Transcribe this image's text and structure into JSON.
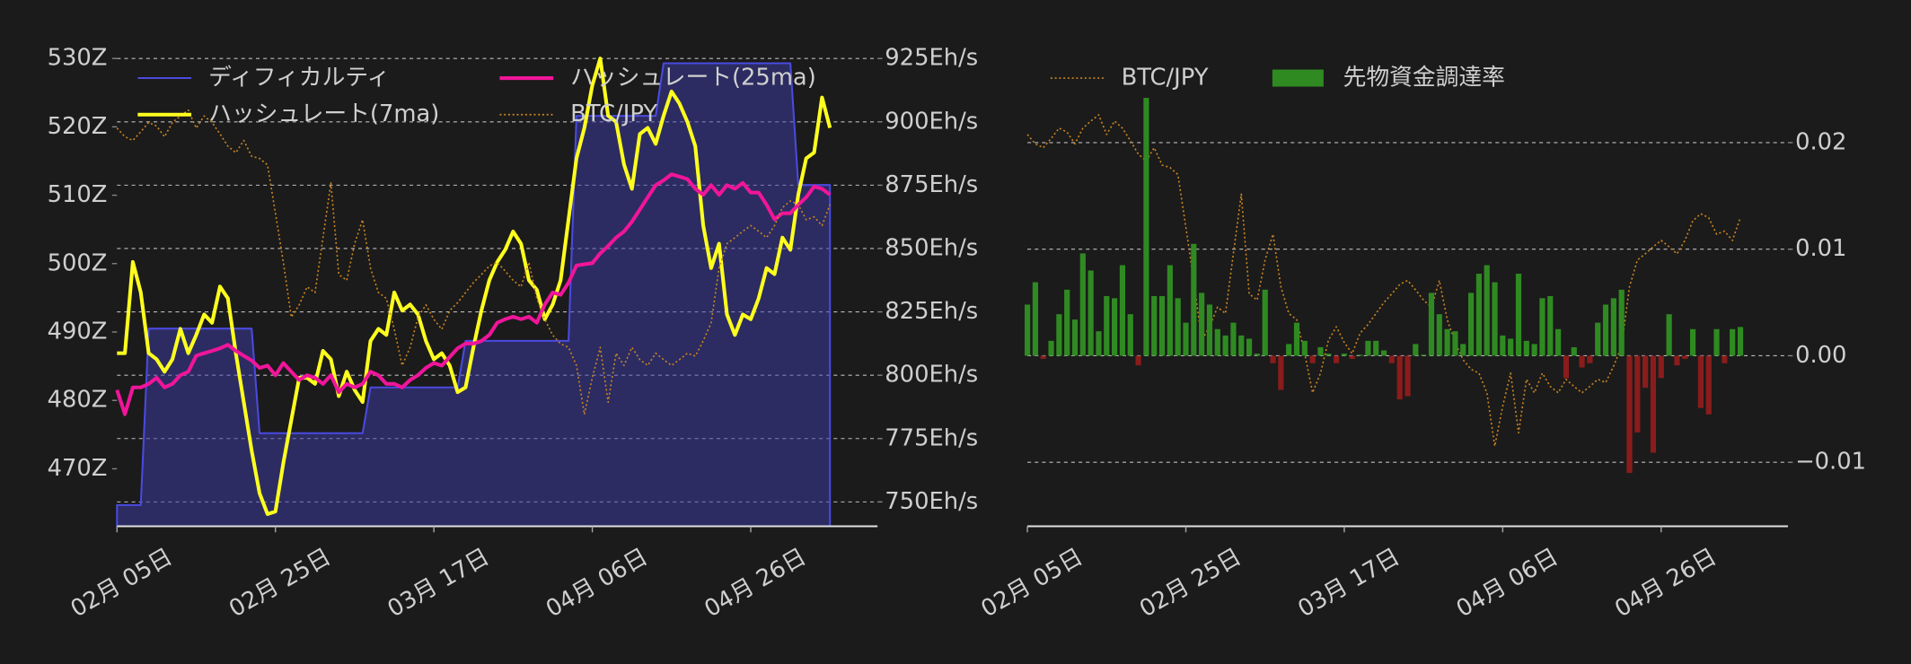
{
  "chart_data": [
    {
      "type": "line",
      "x": [
        "02-05",
        "02-06",
        "02-07",
        "02-08",
        "02-09",
        "02-10",
        "02-11",
        "02-12",
        "02-13",
        "02-14",
        "02-15",
        "02-16",
        "02-17",
        "02-18",
        "02-19",
        "02-20",
        "02-21",
        "02-22",
        "02-23",
        "02-24",
        "02-25",
        "02-26",
        "02-27",
        "02-28",
        "03-01",
        "03-02",
        "03-03",
        "03-04",
        "03-05",
        "03-06",
        "03-07",
        "03-08",
        "03-09",
        "03-10",
        "03-11",
        "03-12",
        "03-13",
        "03-14",
        "03-15",
        "03-16",
        "03-17",
        "03-18",
        "03-19",
        "03-20",
        "03-21",
        "03-22",
        "03-23",
        "03-24",
        "03-25",
        "03-26",
        "03-27",
        "03-28",
        "03-29",
        "03-30",
        "03-31",
        "04-01",
        "04-02",
        "04-03",
        "04-04",
        "04-05",
        "04-06",
        "04-07",
        "04-08",
        "04-09",
        "04-10",
        "04-11",
        "04-12",
        "04-13",
        "04-14",
        "04-15",
        "04-16",
        "04-17",
        "04-18",
        "04-19",
        "04-20",
        "04-21",
        "04-22",
        "04-23",
        "04-24",
        "04-25",
        "04-26",
        "04-27",
        "04-28",
        "04-29",
        "04-30",
        "05-01",
        "05-02",
        "05-03",
        "05-04",
        "05-05",
        "05-06"
      ],
      "xlim": [
        "02-05",
        "05-12"
      ],
      "xticks": [
        {
          "value": "02-05",
          "label": "02月 05日"
        },
        {
          "value": "02-25",
          "label": "02月 25日"
        },
        {
          "value": "03-17",
          "label": "03月 17日"
        },
        {
          "value": "04-06",
          "label": "04月 06日"
        },
        {
          "value": "04-26",
          "label": "04月 26日"
        }
      ],
      "ylim": [
        461.6,
        531.4
      ],
      "yticks": [
        {
          "value": 470,
          "label": "470Z"
        },
        {
          "value": 480,
          "label": "480Z"
        },
        {
          "value": 490,
          "label": "490Z"
        },
        {
          "value": 500,
          "label": "500Z"
        },
        {
          "value": 510,
          "label": "510Z"
        },
        {
          "value": 520,
          "label": "520Z"
        },
        {
          "value": 530,
          "label": "530Z"
        }
      ],
      "y2lim": [
        740.4,
        928.8
      ],
      "y2ticks": [
        {
          "value": 750,
          "label": "750Eh/s"
        },
        {
          "value": 775,
          "label": "775Eh/s"
        },
        {
          "value": 800,
          "label": "800Eh/s"
        },
        {
          "value": 825,
          "label": "825Eh/s"
        },
        {
          "value": 850,
          "label": "850Eh/s"
        },
        {
          "value": 875,
          "label": "875Eh/s"
        },
        {
          "value": 900,
          "label": "900Eh/s"
        },
        {
          "value": 925,
          "label": "925Eh/s"
        }
      ],
      "y3lim": [
        9.78,
        16.4
      ],
      "grid": "y2",
      "legend": "upper left",
      "legend_columns": 2,
      "series": [
        {
          "name": "ディフィカルティ",
          "type": "line",
          "axis": "y",
          "color": "#4a4ae0",
          "fill": "rgba(62,62,170,0.5)",
          "values": [
            464.7,
            464.7,
            464.7,
            464.7,
            490.5,
            490.5,
            490.5,
            490.5,
            490.5,
            490.5,
            490.5,
            490.5,
            490.5,
            490.5,
            490.5,
            490.5,
            490.5,
            490.5,
            475.2,
            475.2,
            475.2,
            475.2,
            475.2,
            475.2,
            475.2,
            475.2,
            475.2,
            475.2,
            475.2,
            475.2,
            475.2,
            475.2,
            481.9,
            481.9,
            481.9,
            481.9,
            481.9,
            481.9,
            481.9,
            481.9,
            481.9,
            481.9,
            481.9,
            481.9,
            488.7,
            488.7,
            488.7,
            488.7,
            488.7,
            488.7,
            488.7,
            488.7,
            488.7,
            488.7,
            488.7,
            488.7,
            488.7,
            488.7,
            521.6,
            521.6,
            521.6,
            521.6,
            521.6,
            521.6,
            521.6,
            521.6,
            521.6,
            521.6,
            521.6,
            529.3,
            529.3,
            529.3,
            529.3,
            529.3,
            529.3,
            529.3,
            529.3,
            529.3,
            529.3,
            529.3,
            529.3,
            529.3,
            529.3,
            529.3,
            529.3,
            529.3,
            511.5,
            511.5,
            511.5,
            511.5,
            511.5
          ]
        },
        {
          "name": "ハッシュレート(7ma)",
          "type": "line",
          "axis": "y2",
          "color": "#ffff1f",
          "width": 3,
          "values": [
            808.7,
            808.7,
            844.7,
            832.7,
            808.7,
            806.3,
            801.4,
            806.3,
            818.3,
            808.7,
            815.9,
            824,
            820.7,
            835,
            830.3,
            808.7,
            789.4,
            770.2,
            753.4,
            745.2,
            746.2,
            765.4,
            782.2,
            799,
            799,
            796.6,
            809.6,
            806.3,
            791.8,
            801.4,
            794.2,
            789.4,
            813.5,
            818.3,
            815.9,
            832.7,
            825.5,
            827.9,
            824,
            813.5,
            806.3,
            808.7,
            803.8,
            793.3,
            795.2,
            811.1,
            825.5,
            837.5,
            844.7,
            849.5,
            856.7,
            851.9,
            837.5,
            833.7,
            822.1,
            827.9,
            837.5,
            861.5,
            885.6,
            897.6,
            914.4,
            925,
            902.4,
            900,
            883.2,
            873.6,
            895.2,
            897.6,
            891.3,
            902.4,
            912,
            907.2,
            900,
            890.4,
            859.1,
            842.3,
            851.9,
            824,
            815.9,
            824,
            822.1,
            830.3,
            842.3,
            839.9,
            854.3,
            849.5,
            871.2,
            885.6,
            887.9,
            909.6,
            897.6
          ]
        },
        {
          "name": "ハッシュレート(25ma)",
          "type": "line",
          "axis": "y2",
          "color": "#f0159a",
          "width": 3,
          "values": [
            794.2,
            784.6,
            795.2,
            795.2,
            796.6,
            799,
            795.2,
            796.6,
            800,
            801.4,
            807.7,
            808.7,
            809.6,
            810.6,
            812,
            809.6,
            807.7,
            805.8,
            802.9,
            803.8,
            800,
            804.8,
            801.4,
            798.1,
            800,
            799,
            796.6,
            800,
            793.3,
            796.6,
            795.2,
            796.6,
            801.4,
            800,
            796.6,
            796.6,
            795.2,
            798.1,
            800,
            802.9,
            804.8,
            803.8,
            807.2,
            810.6,
            812.5,
            812.5,
            813.5,
            815.9,
            820.7,
            822.1,
            823.1,
            822.1,
            823.1,
            820.7,
            827.9,
            832.7,
            831.7,
            836.5,
            843.3,
            843.8,
            844.2,
            848.1,
            851,
            854.3,
            856.7,
            860.6,
            865.4,
            870.2,
            875,
            876.9,
            879.3,
            878.4,
            877.4,
            873.6,
            871.2,
            875,
            871.2,
            875,
            873.6,
            875.9,
            872.1,
            872.1,
            867.3,
            861.5,
            863.9,
            863.9,
            867.3,
            870.2,
            874.5,
            873.6,
            871.2
          ]
        },
        {
          "name": "BTC/JPY",
          "type": "line",
          "axis": "y3",
          "color": "#c98420",
          "width": 1.2,
          "linestyle": "dotted",
          "values": [
            15.3,
            15.18,
            15.13,
            15.25,
            15.38,
            15.33,
            15.18,
            15.38,
            15.47,
            15.55,
            15.3,
            15.47,
            15.38,
            15.22,
            15.05,
            14.96,
            15.13,
            14.91,
            14.88,
            14.79,
            14.12,
            13.44,
            12.68,
            12.85,
            13.1,
            13.02,
            13.78,
            14.54,
            13.27,
            13.19,
            13.7,
            14.03,
            13.36,
            13.02,
            12.94,
            12.51,
            12.01,
            12.26,
            12.68,
            12.85,
            12.65,
            12.51,
            12.77,
            12.88,
            13.02,
            13.16,
            13.27,
            13.39,
            13.44,
            13.32,
            13.19,
            13.1,
            13.44,
            12.94,
            12.65,
            12.43,
            12.31,
            12.26,
            12.01,
            11.33,
            11.84,
            12.26,
            11.5,
            12.18,
            12.01,
            12.26,
            12.09,
            12.01,
            12.18,
            12.09,
            12.01,
            12.09,
            12.18,
            12.14,
            12.35,
            12.6,
            13.36,
            13.7,
            13.78,
            13.87,
            13.95,
            13.87,
            13.78,
            13.95,
            14.2,
            14.29,
            14.24,
            14.03,
            14.07,
            13.95,
            14.24
          ]
        }
      ]
    },
    {
      "type": "bar",
      "x": [
        "02-05",
        "02-06",
        "02-07",
        "02-08",
        "02-09",
        "02-10",
        "02-11",
        "02-12",
        "02-13",
        "02-14",
        "02-15",
        "02-16",
        "02-17",
        "02-18",
        "02-19",
        "02-20",
        "02-21",
        "02-22",
        "02-23",
        "02-24",
        "02-25",
        "02-26",
        "02-27",
        "02-28",
        "03-01",
        "03-02",
        "03-03",
        "03-04",
        "03-05",
        "03-06",
        "03-07",
        "03-08",
        "03-09",
        "03-10",
        "03-11",
        "03-12",
        "03-13",
        "03-14",
        "03-15",
        "03-16",
        "03-17",
        "03-18",
        "03-19",
        "03-20",
        "03-21",
        "03-22",
        "03-23",
        "03-24",
        "03-25",
        "03-26",
        "03-27",
        "03-28",
        "03-29",
        "03-30",
        "03-31",
        "04-01",
        "04-02",
        "04-03",
        "04-04",
        "04-05",
        "04-06",
        "04-07",
        "04-08",
        "04-09",
        "04-10",
        "04-11",
        "04-12",
        "04-13",
        "04-14",
        "04-15",
        "04-16",
        "04-17",
        "04-18",
        "04-19",
        "04-20",
        "04-21",
        "04-22",
        "04-23",
        "04-24",
        "04-25",
        "04-26",
        "04-27",
        "04-28",
        "04-29",
        "04-30",
        "05-01",
        "05-02",
        "05-03",
        "05-04",
        "05-05",
        "05-06"
      ],
      "xlim": [
        "02-05",
        "05-12"
      ],
      "xticks": [
        {
          "value": "02-05",
          "label": "02月 05日"
        },
        {
          "value": "02-25",
          "label": "02月 25日"
        },
        {
          "value": "03-17",
          "label": "03月 17日"
        },
        {
          "value": "04-06",
          "label": "04月 06日"
        },
        {
          "value": "04-26",
          "label": "04月 26日"
        }
      ],
      "ylim": [
        -0.016,
        0.0288
      ],
      "yticks": [
        {
          "value": -0.01,
          "label": "−0.01"
        },
        {
          "value": 0,
          "label": "0.00"
        },
        0.01,
        0.02
      ],
      "y_axis_side": "right",
      "y2lim": [
        10.31,
        16.39
      ],
      "grid": "y",
      "legend": "upper left",
      "legend_columns": 2,
      "series": [
        {
          "name": "BTC/JPY",
          "type": "line",
          "axis": "y2",
          "color": "#c98420",
          "width": 1.2,
          "linestyle": "dotted",
          "values": [
            15.3,
            15.18,
            15.13,
            15.25,
            15.38,
            15.33,
            15.18,
            15.38,
            15.47,
            15.55,
            15.3,
            15.47,
            15.38,
            15.22,
            15.05,
            14.96,
            15.13,
            14.91,
            14.88,
            14.79,
            14.12,
            13.44,
            12.68,
            12.85,
            13.1,
            13.02,
            13.78,
            14.54,
            13.27,
            13.19,
            13.7,
            14.03,
            13.36,
            13.02,
            12.94,
            12.51,
            12.01,
            12.26,
            12.68,
            12.85,
            12.65,
            12.51,
            12.77,
            12.88,
            13.02,
            13.16,
            13.27,
            13.39,
            13.44,
            13.32,
            13.19,
            13.1,
            13.44,
            12.94,
            12.65,
            12.43,
            12.31,
            12.26,
            12.01,
            11.33,
            11.84,
            12.26,
            11.5,
            12.18,
            12.01,
            12.26,
            12.09,
            12.01,
            12.18,
            12.09,
            12.01,
            12.09,
            12.18,
            12.14,
            12.35,
            12.6,
            13.36,
            13.7,
            13.78,
            13.87,
            13.95,
            13.87,
            13.78,
            13.95,
            14.2,
            14.29,
            14.24,
            14.03,
            14.07,
            13.95,
            14.24
          ]
        },
        {
          "name": "先物資金調達率",
          "type": "bar",
          "axis": "y",
          "color": "#2f8a22",
          "negative_color": "#8a1c1c",
          "values": [
            0.0048,
            0.0069,
            -0.0003,
            0.0014,
            0.0039,
            0.0062,
            0.0034,
            0.0096,
            0.008,
            0.0023,
            0.0056,
            0.0054,
            0.0085,
            0.0039,
            -0.0009,
            0.0242,
            0.0056,
            0.0056,
            0.0085,
            0.0054,
            0.0031,
            0.0105,
            0.0059,
            0.0048,
            0.0025,
            0.0019,
            0.0031,
            0.0019,
            0.0016,
            0.0002,
            0.0062,
            -0.0007,
            -0.0032,
            0.0011,
            0.0031,
            0.0014,
            -0.0007,
            0.0008,
            0.0002,
            -0.0007,
            0.0002,
            -0.0003,
            0.0001,
            0.0014,
            0.0014,
            0.0005,
            -0.0007,
            -0.0041,
            -0.0038,
            0.0011,
            0.0001,
            0.0059,
            0.0039,
            0.0025,
            0.0023,
            0.0011,
            0.0059,
            0.0077,
            0.0085,
            0.0069,
            0.0019,
            0.0016,
            0.0077,
            0.0014,
            0.0011,
            0.0054,
            0.0056,
            0.0025,
            -0.0021,
            0.0008,
            -0.0011,
            -0.0007,
            0.0031,
            0.0048,
            0.0054,
            0.0062,
            -0.011,
            -0.0072,
            -0.003,
            -0.0091,
            -0.0021,
            0.0039,
            -0.0009,
            -0.0003,
            0.0025,
            -0.0049,
            -0.0055,
            0.0025,
            -0.0007,
            0.0025,
            0.0027
          ]
        }
      ]
    }
  ]
}
